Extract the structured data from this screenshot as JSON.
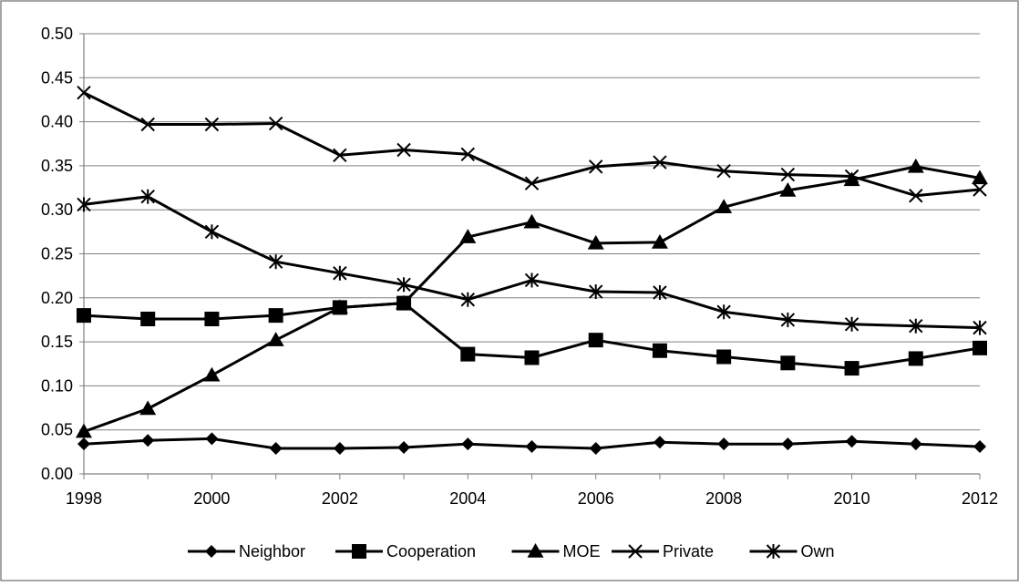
{
  "chart_data": {
    "type": "line",
    "title": "",
    "xlabel": "",
    "ylabel": "",
    "x": [
      1998,
      1999,
      2000,
      2001,
      2002,
      2003,
      2004,
      2005,
      2006,
      2007,
      2008,
      2009,
      2010,
      2011,
      2012
    ],
    "x_ticks": [
      "1998",
      "2000",
      "2002",
      "2004",
      "2006",
      "2008",
      "2010",
      "2012"
    ],
    "xlim": [
      1998,
      2012
    ],
    "ylim": [
      0,
      0.5
    ],
    "y_ticks": [
      "0.00",
      "0.05",
      "0.10",
      "0.15",
      "0.20",
      "0.25",
      "0.30",
      "0.35",
      "0.40",
      "0.45",
      "0.50"
    ],
    "grid": "horizontal",
    "legend_position": "bottom",
    "series": [
      {
        "name": "Neighbor",
        "marker": "diamond",
        "values": [
          0.034,
          0.038,
          0.04,
          0.029,
          0.029,
          0.03,
          0.034,
          0.031,
          0.029,
          0.036,
          0.034,
          0.034,
          0.037,
          0.034,
          0.031
        ]
      },
      {
        "name": "Cooperation",
        "marker": "square",
        "values": [
          0.18,
          0.176,
          0.176,
          0.18,
          0.189,
          0.194,
          0.136,
          0.132,
          0.152,
          0.14,
          0.133,
          0.126,
          0.12,
          0.131,
          0.143
        ]
      },
      {
        "name": "MOE",
        "marker": "triangle",
        "values": [
          0.048,
          0.074,
          0.112,
          0.152,
          0.189,
          0.194,
          0.269,
          0.286,
          0.262,
          0.263,
          0.303,
          0.322,
          0.334,
          0.349,
          0.336
        ]
      },
      {
        "name": "Private",
        "marker": "x",
        "values": [
          0.433,
          0.397,
          0.397,
          0.398,
          0.362,
          0.368,
          0.363,
          0.33,
          0.349,
          0.354,
          0.344,
          0.34,
          0.338,
          0.316,
          0.323
        ]
      },
      {
        "name": "Own",
        "marker": "star",
        "values": [
          0.306,
          0.315,
          0.275,
          0.241,
          0.228,
          0.215,
          0.198,
          0.22,
          0.207,
          0.206,
          0.184,
          0.175,
          0.17,
          0.168,
          0.166
        ]
      }
    ]
  }
}
